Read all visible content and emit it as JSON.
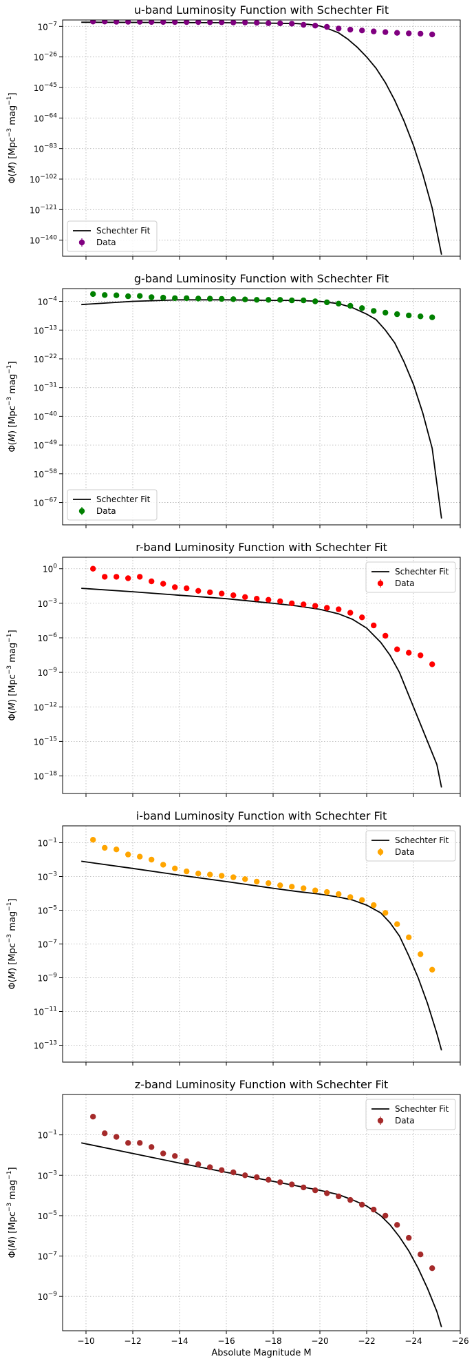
{
  "figure": {
    "xlabel": "Absolute Magnitude M",
    "x_tick_labels": [
      "−10",
      "−12",
      "−14",
      "−16",
      "−18",
      "−20",
      "−22",
      "−24",
      "−26"
    ],
    "ylabel_parts": [
      "Φ(",
      "M",
      ") [Mpc",
      "−3",
      " mag",
      "−1",
      "]"
    ]
  },
  "chart_data": [
    {
      "type": "scatter",
      "title": "u-band Luminosity Function with Schechter Fit",
      "xlabel": "",
      "ylabel": "Φ(M) [Mpc⁻³ mag⁻¹]",
      "xlim": [
        -9.0,
        -26.0
      ],
      "ylim": [
        1e-150,
        0.001
      ],
      "yscale": "log",
      "x_ticks": [
        -10,
        -12,
        -14,
        -16,
        -18,
        -20,
        -22,
        -24,
        -26
      ],
      "y_ticks": [
        1e-07,
        1e-26,
        1e-45,
        1e-64,
        1e-83,
        1e-102,
        1e-121,
        1e-140
      ],
      "y_tick_labels": [
        [
          "10",
          "−7"
        ],
        [
          "10",
          "−26"
        ],
        [
          "10",
          "−45"
        ],
        [
          "10",
          "−64"
        ],
        [
          "10",
          "−83"
        ],
        [
          "10",
          "−102"
        ],
        [
          "10",
          "−121"
        ],
        [
          "10",
          "−140"
        ]
      ],
      "grid": true,
      "legend": {
        "position": "lower-left",
        "entries": [
          "Schechter Fit",
          "Data"
        ]
      },
      "color": "#800080",
      "series": [
        {
          "name": "Schechter Fit",
          "kind": "line",
          "color": "#000000",
          "x": [
            -9.8,
            -16.0,
            -18.0,
            -19.0,
            -19.5,
            -20.0,
            -20.4,
            -20.8,
            -21.2,
            -21.6,
            -22.0,
            -22.4,
            -22.8,
            -23.2,
            -23.6,
            -24.0,
            -24.4,
            -24.8,
            -25.2
          ],
          "y": [
            4e-05,
            2e-05,
            1e-05,
            6e-06,
            2e-06,
            2e-07,
            2e-09,
            1e-11,
            1e-15,
            1e-20,
            1e-26,
            1e-33,
            1e-42,
            1e-53,
            1e-66,
            1e-81,
            1e-99,
            1e-120,
            1e-149
          ]
        },
        {
          "name": "Data",
          "kind": "points",
          "color": "#800080",
          "x": [
            -10.3,
            -10.8,
            -11.3,
            -11.8,
            -12.3,
            -12.8,
            -13.3,
            -13.8,
            -14.3,
            -14.8,
            -15.3,
            -15.8,
            -16.3,
            -16.8,
            -17.3,
            -17.8,
            -18.3,
            -18.8,
            -19.3,
            -19.8,
            -20.3,
            -20.8,
            -21.3,
            -21.8,
            -22.3,
            -22.8,
            -23.3,
            -23.8,
            -24.3,
            -24.8
          ],
          "y": [
            0.0001,
            0.0001,
            8e-05,
            8e-05,
            7e-05,
            6e-05,
            6e-05,
            5e-05,
            5e-05,
            5e-05,
            4e-05,
            4e-05,
            3e-05,
            3e-05,
            2e-05,
            1e-05,
            8e-06,
            5e-06,
            1e-06,
            3e-07,
            5e-08,
            5e-09,
            1e-09,
            3e-10,
            8e-11,
            3e-11,
            1e-11,
            5e-12,
            3e-12,
            1e-12
          ]
        }
      ]
    },
    {
      "type": "scatter",
      "title": "g-band Luminosity Function with Schechter Fit",
      "xlabel": "",
      "ylabel": "Φ(M) [Mpc⁻³ mag⁻¹]",
      "xlim": [
        -9.0,
        -26.0
      ],
      "ylim": [
        1e-74,
        1.0
      ],
      "yscale": "log",
      "x_ticks": [
        -10,
        -12,
        -14,
        -16,
        -18,
        -20,
        -22,
        -24,
        -26
      ],
      "y_ticks": [
        0.0001,
        1e-13,
        1e-22,
        1e-31,
        1e-40,
        1e-49,
        1e-58,
        1e-67
      ],
      "y_tick_labels": [
        [
          "10",
          "−4"
        ],
        [
          "10",
          "−13"
        ],
        [
          "10",
          "−22"
        ],
        [
          "10",
          "−31"
        ],
        [
          "10",
          "−40"
        ],
        [
          "10",
          "−49"
        ],
        [
          "10",
          "−58"
        ],
        [
          "10",
          "−67"
        ]
      ],
      "grid": true,
      "legend": {
        "position": "lower-left",
        "entries": [
          "Schechter Fit",
          "Data"
        ]
      },
      "color": "#008000",
      "series": [
        {
          "name": "Schechter Fit",
          "kind": "line",
          "color": "#000000",
          "x": [
            -9.8,
            -12.0,
            -14.0,
            -16.0,
            -18.0,
            -19.0,
            -20.0,
            -20.8,
            -21.4,
            -22.0,
            -22.4,
            -22.8,
            -23.2,
            -23.6,
            -24.0,
            -24.4,
            -24.8,
            -25.2
          ],
          "y": [
            1e-05,
            0.0001,
            0.0003,
            0.0003,
            0.0002,
            0.0002,
            0.0001,
            2e-05,
            1e-06,
            1e-08,
            2e-10,
            1e-13,
            1e-17,
            1e-23,
            1e-30,
            1e-39,
            1e-50,
            1e-72
          ]
        },
        {
          "name": "Data",
          "kind": "points",
          "color": "#008000",
          "x": [
            -10.3,
            -10.8,
            -11.3,
            -11.8,
            -12.3,
            -12.8,
            -13.3,
            -13.8,
            -14.3,
            -14.8,
            -15.3,
            -15.8,
            -16.3,
            -16.8,
            -17.3,
            -17.8,
            -18.3,
            -18.8,
            -19.3,
            -19.8,
            -20.3,
            -20.8,
            -21.3,
            -21.8,
            -22.3,
            -22.8,
            -23.3,
            -23.8,
            -24.3,
            -24.8
          ],
          "y": [
            0.02,
            0.01,
            0.008,
            0.004,
            0.005,
            0.002,
            0.0015,
            0.001,
            0.001,
            0.0008,
            0.0007,
            0.0006,
            0.0005,
            0.0004,
            0.0003,
            0.0003,
            0.0003,
            0.0002,
            0.0002,
            0.0001,
            5e-05,
            2e-05,
            4e-06,
            8e-07,
            1e-07,
            3e-08,
            1e-08,
            4e-09,
            2e-09,
            1e-09
          ]
        }
      ]
    },
    {
      "type": "scatter",
      "title": "r-band Luminosity Function with Schechter Fit",
      "xlabel": "",
      "ylabel": "Φ(M) [Mpc⁻³ mag⁻¹]",
      "xlim": [
        -9.0,
        -26.0
      ],
      "ylim": [
        3e-20,
        10
      ],
      "yscale": "log",
      "x_ticks": [
        -10,
        -12,
        -14,
        -16,
        -18,
        -20,
        -22,
        -24,
        -26
      ],
      "y_ticks": [
        1.0,
        0.001,
        1e-06,
        1e-09,
        1e-12,
        1e-15,
        1e-18
      ],
      "y_tick_labels": [
        [
          "10",
          "0"
        ],
        [
          "10",
          "−3"
        ],
        [
          "10",
          "−6"
        ],
        [
          "10",
          "−9"
        ],
        [
          "10",
          "−12"
        ],
        [
          "10",
          "−15"
        ],
        [
          "10",
          "−18"
        ]
      ],
      "grid": true,
      "legend": {
        "position": "upper-right",
        "entries": [
          "Schechter Fit",
          "Data"
        ]
      },
      "color": "#ff0000",
      "series": [
        {
          "name": "Schechter Fit",
          "kind": "line",
          "color": "#000000",
          "x": [
            -9.8,
            -12.0,
            -14.0,
            -16.0,
            -18.0,
            -19.0,
            -20.0,
            -20.8,
            -21.4,
            -22.0,
            -22.6,
            -23.0,
            -23.4,
            -23.8,
            -24.2,
            -24.6,
            -25.0,
            -25.2
          ],
          "y": [
            0.02,
            0.01,
            0.005,
            0.0025,
            0.001,
            0.0006,
            0.0003,
            0.00012,
            4e-05,
            7e-06,
            4e-07,
            3e-08,
            1e-09,
            1e-11,
            1e-13,
            1e-15,
            1e-17,
            1e-19
          ]
        },
        {
          "name": "Data",
          "kind": "points",
          "color": "#ff0000",
          "x": [
            -10.3,
            -10.8,
            -11.3,
            -11.8,
            -12.3,
            -12.8,
            -13.3,
            -13.8,
            -14.3,
            -14.8,
            -15.3,
            -15.8,
            -16.3,
            -16.8,
            -17.3,
            -17.8,
            -18.3,
            -18.8,
            -19.3,
            -19.8,
            -20.3,
            -20.8,
            -21.3,
            -21.8,
            -22.3,
            -22.8,
            -23.3,
            -23.8,
            -24.3,
            -24.8
          ],
          "y": [
            1.0,
            0.2,
            0.2,
            0.15,
            0.2,
            0.08,
            0.05,
            0.025,
            0.02,
            0.012,
            0.009,
            0.007,
            0.005,
            0.0035,
            0.0025,
            0.002,
            0.0015,
            0.001,
            0.0008,
            0.0006,
            0.0004,
            0.0003,
            0.00015,
            6e-05,
            1.2e-05,
            1.5e-06,
            1e-07,
            5e-08,
            3e-08,
            5e-09
          ]
        }
      ]
    },
    {
      "type": "scatter",
      "title": "i-band Luminosity Function with Schechter Fit",
      "xlabel": "",
      "ylabel": "Φ(M) [Mpc⁻³ mag⁻¹]",
      "xlim": [
        -9.0,
        -26.0
      ],
      "ylim": [
        1e-14,
        1
      ],
      "yscale": "log",
      "x_ticks": [
        -10,
        -12,
        -14,
        -16,
        -18,
        -20,
        -22,
        -24,
        -26
      ],
      "y_ticks": [
        0.1,
        0.001,
        1e-05,
        1e-07,
        1e-09,
        1e-11,
        1e-13
      ],
      "y_tick_labels": [
        [
          "10",
          "−1"
        ],
        [
          "10",
          "−3"
        ],
        [
          "10",
          "−5"
        ],
        [
          "10",
          "−7"
        ],
        [
          "10",
          "−9"
        ],
        [
          "10",
          "−11"
        ],
        [
          "10",
          "−13"
        ]
      ],
      "grid": true,
      "legend": {
        "position": "upper-right",
        "entries": [
          "Schechter Fit",
          "Data"
        ]
      },
      "color": "#ffa500",
      "series": [
        {
          "name": "Schechter Fit",
          "kind": "line",
          "color": "#000000",
          "x": [
            -9.8,
            -12.0,
            -14.0,
            -16.0,
            -18.0,
            -19.0,
            -20.0,
            -20.8,
            -21.4,
            -22.0,
            -22.6,
            -23.0,
            -23.4,
            -23.8,
            -24.2,
            -24.6,
            -25.0,
            -25.2
          ],
          "y": [
            0.008,
            0.003,
            0.0012,
            0.0005,
            0.0002,
            0.00013,
            9e-05,
            6e-05,
            4e-05,
            2e-05,
            7e-06,
            1.8e-06,
            3e-07,
            2e-08,
            1e-09,
            3e-11,
            5e-13,
            5e-14
          ]
        },
        {
          "name": "Data",
          "kind": "points",
          "color": "#ffa500",
          "x": [
            -10.3,
            -10.8,
            -11.3,
            -11.8,
            -12.3,
            -12.8,
            -13.3,
            -13.8,
            -14.3,
            -14.8,
            -15.3,
            -15.8,
            -16.3,
            -16.8,
            -17.3,
            -17.8,
            -18.3,
            -18.8,
            -19.3,
            -19.8,
            -20.3,
            -20.8,
            -21.3,
            -21.8,
            -22.3,
            -22.8,
            -23.3,
            -23.8,
            -24.3,
            -24.8
          ],
          "y": [
            0.15,
            0.05,
            0.04,
            0.02,
            0.015,
            0.01,
            0.005,
            0.003,
            0.002,
            0.0015,
            0.0013,
            0.0011,
            0.0009,
            0.0007,
            0.0005,
            0.0004,
            0.0003,
            0.00025,
            0.0002,
            0.00015,
            0.00012,
            9e-05,
            6e-05,
            4e-05,
            2e-05,
            7e-06,
            1.5e-06,
            2.5e-07,
            2.5e-08,
            3e-09
          ]
        }
      ]
    },
    {
      "type": "scatter",
      "title": "z-band Luminosity Function with Schechter Fit",
      "xlabel": "Absolute Magnitude M",
      "ylabel": "Φ(M) [Mpc⁻³ mag⁻¹]",
      "xlim": [
        -9.0,
        -26.0
      ],
      "ylim": [
        2e-11,
        10
      ],
      "yscale": "log",
      "x_ticks": [
        -10,
        -12,
        -14,
        -16,
        -18,
        -20,
        -22,
        -24,
        -26
      ],
      "y_ticks": [
        0.1,
        0.001,
        1e-05,
        1e-07,
        1e-09
      ],
      "y_tick_labels": [
        [
          "10",
          "−1"
        ],
        [
          "10",
          "−3"
        ],
        [
          "10",
          "−5"
        ],
        [
          "10",
          "−7"
        ],
        [
          "10",
          "−9"
        ]
      ],
      "grid": true,
      "legend": {
        "position": "upper-right",
        "entries": [
          "Schechter Fit",
          "Data"
        ]
      },
      "color": "#a52a2a",
      "series": [
        {
          "name": "Schechter Fit",
          "kind": "line",
          "color": "#000000",
          "x": [
            -9.8,
            -12.0,
            -14.0,
            -16.0,
            -18.0,
            -19.0,
            -20.0,
            -20.8,
            -21.4,
            -22.0,
            -22.6,
            -23.0,
            -23.4,
            -23.8,
            -24.2,
            -24.6,
            -25.0,
            -25.2
          ],
          "y": [
            0.04,
            0.012,
            0.004,
            0.0014,
            0.0005,
            0.0003,
            0.00018,
            0.00011,
            6e-05,
            3e-05,
            1e-05,
            3.5e-06,
            9e-07,
            1.8e-07,
            2.5e-08,
            2.5e-09,
            1.8e-10,
            3e-11
          ]
        },
        {
          "name": "Data",
          "kind": "points",
          "color": "#a52a2a",
          "x": [
            -10.3,
            -10.8,
            -11.3,
            -11.8,
            -12.3,
            -12.8,
            -13.3,
            -13.8,
            -14.3,
            -14.8,
            -15.3,
            -15.8,
            -16.3,
            -16.8,
            -17.3,
            -17.8,
            -18.3,
            -18.8,
            -19.3,
            -19.8,
            -20.3,
            -20.8,
            -21.3,
            -21.8,
            -22.3,
            -22.8,
            -23.3,
            -23.8,
            -24.3,
            -24.8
          ],
          "y": [
            0.8,
            0.12,
            0.08,
            0.04,
            0.04,
            0.025,
            0.012,
            0.009,
            0.005,
            0.0035,
            0.0025,
            0.0018,
            0.0014,
            0.001,
            0.0008,
            0.0006,
            0.00045,
            0.00035,
            0.00025,
            0.00018,
            0.00013,
            9e-05,
            6e-05,
            3.5e-05,
            2e-05,
            1e-05,
            3.5e-06,
            8e-07,
            1.2e-07,
            2.5e-08
          ]
        }
      ]
    }
  ]
}
